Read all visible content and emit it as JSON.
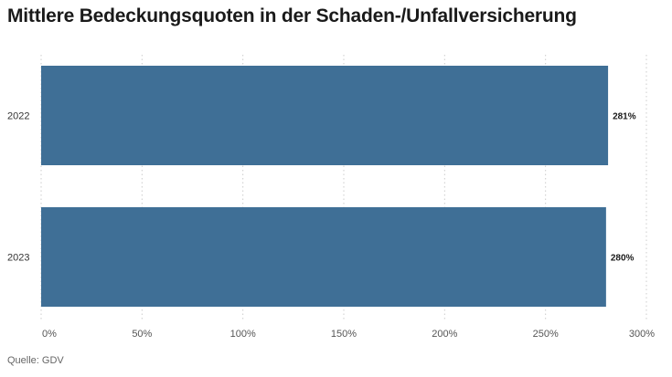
{
  "source": "Quelle: GDV",
  "chart_data": {
    "type": "bar",
    "orientation": "horizontal",
    "title": "Mittlere Bedeckungsquoten in der Schaden-/Unfallversicherung",
    "categories": [
      "2022",
      "2023"
    ],
    "values": [
      281,
      280
    ],
    "data_labels": [
      "281%",
      "280%"
    ],
    "xlim": [
      0,
      300
    ],
    "x_ticks": [
      0,
      50,
      100,
      150,
      200,
      250,
      300
    ],
    "x_tick_labels": [
      "0%",
      "50%",
      "100%",
      "150%",
      "200%",
      "250%",
      "300%"
    ],
    "grid": true,
    "legend": "none",
    "bar_color": "#3f6f96"
  }
}
